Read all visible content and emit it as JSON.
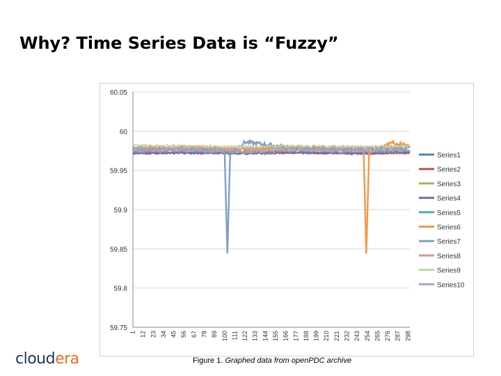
{
  "slide": {
    "title": "Why? Time Series Data is “Fuzzy”",
    "caption_prefix": "Figure 1.",
    "caption_text": "Graphed data from openPDC archive"
  },
  "logo": {
    "part1": "cloud",
    "part2": "era"
  },
  "colors": {
    "brand_dark": "#1a3a5c",
    "brand_accent": "#f26b1d"
  },
  "chart_data": {
    "type": "line",
    "title": "",
    "xlabel": "",
    "ylabel": "",
    "ylim": [
      59.75,
      60.05
    ],
    "yticks": [
      59.75,
      59.8,
      59.85,
      59.9,
      59.95,
      60,
      60.05
    ],
    "ytick_labels": [
      "59.75",
      "59.8",
      "59.85",
      "59.9",
      "59.95",
      "60",
      "60.05"
    ],
    "grid": "horizontal",
    "legend": "right",
    "x_range": [
      1,
      300
    ],
    "xticks": [
      1,
      12,
      23,
      34,
      45,
      56,
      67,
      78,
      89,
      100,
      111,
      122,
      133,
      144,
      155,
      166,
      177,
      188,
      199,
      210,
      221,
      232,
      243,
      254,
      265,
      276,
      287,
      298
    ],
    "series": [
      {
        "name": "Series1",
        "color": "#4f81bd",
        "base": 59.972,
        "amp": 0.002,
        "points": [
          [
            1,
            59.972
          ],
          [
            60,
            59.973
          ],
          [
            120,
            59.972
          ],
          [
            180,
            59.973
          ],
          [
            240,
            59.972
          ],
          [
            300,
            59.973
          ]
        ]
      },
      {
        "name": "Series2",
        "color": "#c0504d",
        "base": 59.971,
        "amp": 0.002,
        "points": [
          [
            1,
            59.971
          ],
          [
            60,
            59.972
          ],
          [
            120,
            59.971
          ],
          [
            180,
            59.972
          ],
          [
            240,
            59.971
          ],
          [
            300,
            59.972
          ]
        ]
      },
      {
        "name": "Series3",
        "color": "#9bbb59",
        "base": 59.976,
        "amp": 0.003,
        "points": [
          [
            1,
            59.976
          ],
          [
            60,
            59.977
          ],
          [
            120,
            59.975
          ],
          [
            180,
            59.976
          ],
          [
            240,
            59.977
          ],
          [
            300,
            59.976
          ]
        ]
      },
      {
        "name": "Series4",
        "color": "#8064a2",
        "base": 59.973,
        "amp": 0.003,
        "points": [
          [
            1,
            59.973
          ],
          [
            60,
            59.972
          ],
          [
            120,
            59.974
          ],
          [
            180,
            59.973
          ],
          [
            240,
            59.972
          ],
          [
            300,
            59.974
          ]
        ]
      },
      {
        "name": "Series5",
        "color": "#4bacc6",
        "base": 59.974,
        "amp": 0.003,
        "points": [
          [
            1,
            59.974
          ],
          [
            60,
            59.975
          ],
          [
            120,
            59.973
          ],
          [
            180,
            59.975
          ],
          [
            240,
            59.974
          ],
          [
            300,
            59.975
          ]
        ]
      },
      {
        "name": "Series6",
        "color": "#f79646",
        "base": 59.978,
        "amp": 0.004,
        "points": [
          [
            1,
            59.978
          ],
          [
            60,
            59.979
          ],
          [
            120,
            59.977
          ],
          [
            180,
            59.979
          ],
          [
            250,
            59.978
          ],
          [
            253,
            59.844
          ],
          [
            256,
            59.972
          ],
          [
            280,
            59.986
          ],
          [
            300,
            59.981
          ]
        ]
      },
      {
        "name": "Series7",
        "color": "#7f9fc5",
        "base": 59.977,
        "amp": 0.005,
        "points": [
          [
            1,
            59.977
          ],
          [
            60,
            59.976
          ],
          [
            100,
            59.975
          ],
          [
            103,
            59.844
          ],
          [
            106,
            59.971
          ],
          [
            122,
            59.986
          ],
          [
            180,
            59.978
          ],
          [
            240,
            59.977
          ],
          [
            300,
            59.979
          ]
        ]
      },
      {
        "name": "Series8",
        "color": "#d99694",
        "base": 59.979,
        "amp": 0.004,
        "points": [
          [
            1,
            59.979
          ],
          [
            60,
            59.98
          ],
          [
            120,
            59.978
          ],
          [
            180,
            59.98
          ],
          [
            240,
            59.979
          ],
          [
            300,
            59.98
          ]
        ]
      },
      {
        "name": "Series9",
        "color": "#c3d69b",
        "base": 59.981,
        "amp": 0.003,
        "points": [
          [
            1,
            59.982
          ],
          [
            60,
            59.981
          ],
          [
            120,
            59.98
          ],
          [
            180,
            59.981
          ],
          [
            240,
            59.98
          ],
          [
            300,
            59.981
          ]
        ]
      },
      {
        "name": "Series10",
        "color": "#a5a5c8",
        "base": 59.975,
        "amp": 0.004,
        "points": [
          [
            1,
            59.975
          ],
          [
            60,
            59.976
          ],
          [
            120,
            59.974
          ],
          [
            180,
            59.976
          ],
          [
            240,
            59.975
          ],
          [
            300,
            59.976
          ]
        ]
      }
    ]
  }
}
